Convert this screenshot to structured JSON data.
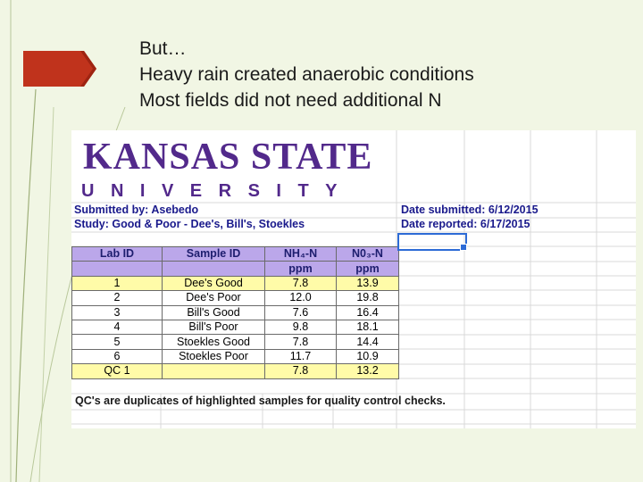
{
  "slide": {
    "lines": [
      "But…",
      "Heavy rain created anaerobic conditions",
      "Most fields did not need additional N"
    ]
  },
  "logo": {
    "name": "KANSAS STATE",
    "sub": "UNIVERSITY"
  },
  "report": {
    "submitted_by": "Submitted by:  Asebedo",
    "study": "Study:  Good & Poor - Dee's, Bill's, Stoekles",
    "date_submitted": "Date submitted:  6/12/2015",
    "date_reported": "Date reported:  6/17/2015"
  },
  "table": {
    "headers": [
      "Lab ID",
      "Sample ID",
      "NH₄-N",
      "N0₃-N"
    ],
    "units": [
      "",
      "",
      "ppm",
      "ppm"
    ],
    "rows": [
      [
        "1",
        "Dee's Good",
        "7.8",
        "13.9"
      ],
      [
        "2",
        "Dee's Poor",
        "12.0",
        "19.8"
      ],
      [
        "3",
        "Bill's Good",
        "7.6",
        "16.4"
      ],
      [
        "4",
        "Bill's Poor",
        "9.8",
        "18.1"
      ],
      [
        "5",
        "Stoekles Good",
        "7.8",
        "14.4"
      ],
      [
        "6",
        "Stoekles Poor",
        "11.7",
        "10.9"
      ],
      [
        "QC 1",
        "",
        "7.8",
        "13.2"
      ]
    ]
  },
  "note": "QC's are duplicates of highlighted samples for quality control checks.",
  "colors": {
    "purple": "#52298b",
    "header": "#bba7ea",
    "highlight": "#fffba8",
    "arrow": "#c0331c"
  }
}
